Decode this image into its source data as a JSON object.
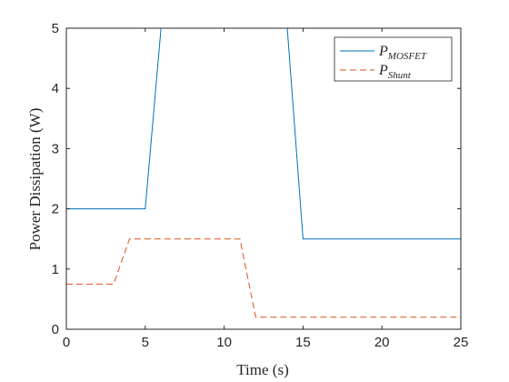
{
  "chart_data": {
    "type": "line",
    "xlabel": "Time (s)",
    "ylabel": "Power Dissipation (W)",
    "xlim": [
      0,
      25
    ],
    "ylim": [
      0,
      5
    ],
    "xticks": [
      "0",
      "5",
      "10",
      "15",
      "20",
      "25"
    ],
    "yticks": [
      "0",
      "1",
      "2",
      "3",
      "4",
      "5"
    ],
    "grid": false,
    "legend_position": "top-right",
    "series": [
      {
        "name": "P_MOSFET",
        "legend_main": "P",
        "legend_sub": "MOSFET",
        "color": "#0072BD",
        "dash": "solid",
        "x": [
          0,
          5,
          6,
          14,
          15,
          25
        ],
        "y": [
          2,
          2,
          5,
          5,
          1.5,
          1.5
        ]
      },
      {
        "name": "P_Shunt",
        "legend_main": "P",
        "legend_sub": "Shunt",
        "color": "#D95319",
        "dash": "dashed",
        "x": [
          0,
          3,
          4,
          11,
          12,
          25
        ],
        "y": [
          0.75,
          0.75,
          1.5,
          1.5,
          0.2,
          0.2
        ]
      }
    ]
  }
}
